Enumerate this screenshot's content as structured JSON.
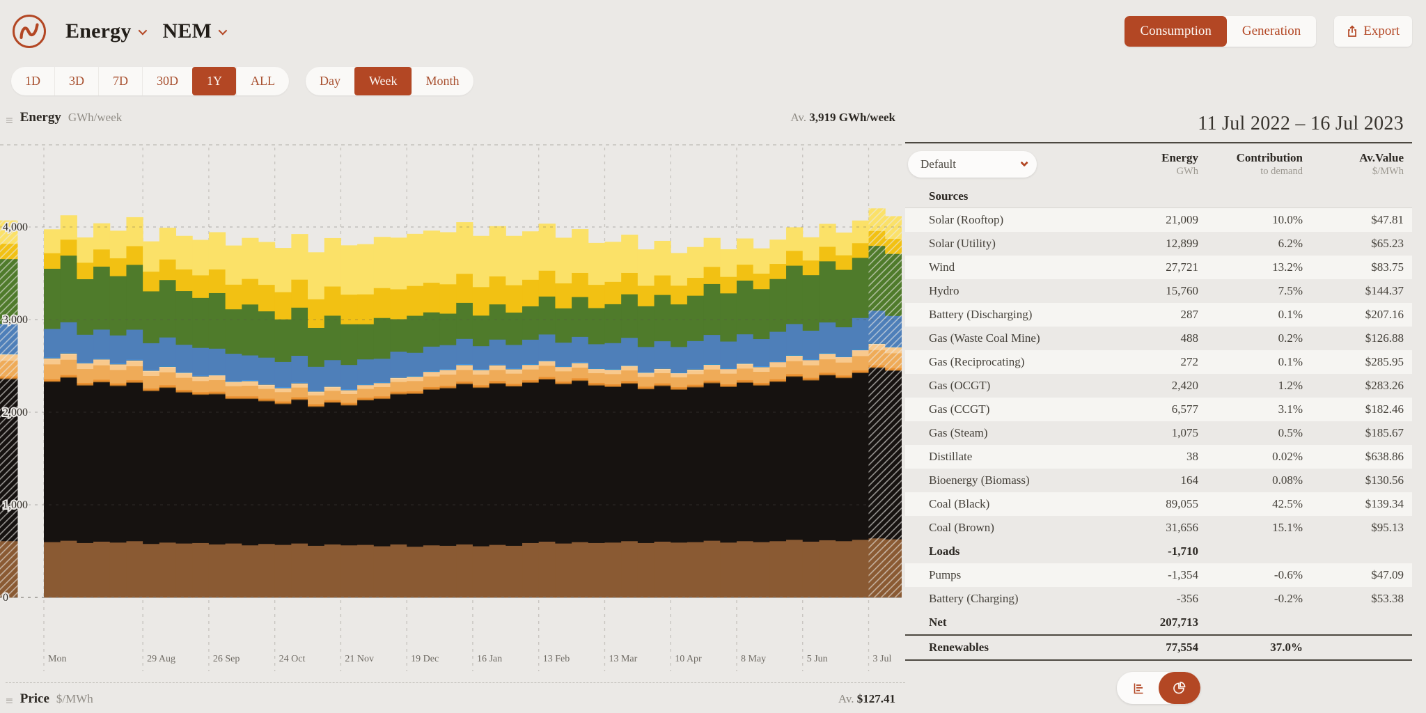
{
  "brand": {
    "accent": "#b34724",
    "logo_name": "opennem-logo"
  },
  "header": {
    "title": "Energy",
    "region": "NEM",
    "views": [
      {
        "label": "Consumption",
        "selected": true
      },
      {
        "label": "Generation",
        "selected": false
      }
    ],
    "export_label": "Export"
  },
  "range_bar": {
    "ranges": [
      {
        "label": "1D",
        "selected": false
      },
      {
        "label": "3D",
        "selected": false
      },
      {
        "label": "7D",
        "selected": false
      },
      {
        "label": "30D",
        "selected": false
      },
      {
        "label": "1Y",
        "selected": true
      },
      {
        "label": "ALL",
        "selected": false
      }
    ],
    "intervals": [
      {
        "label": "Day",
        "selected": false
      },
      {
        "label": "Week",
        "selected": true
      },
      {
        "label": "Month",
        "selected": false
      }
    ]
  },
  "chart_header": {
    "title": "Energy",
    "unit": "GWh/week",
    "average_label": "Av.",
    "average_value": "3,919 GWh/week"
  },
  "price_header": {
    "title": "Price",
    "unit": "$/MWh",
    "average_label": "Av.",
    "average_value": "$127.41"
  },
  "panel": {
    "date_range": "11 Jul 2022 – 16 Jul 2023",
    "filter_value": "Default",
    "columns": {
      "c1": {
        "t": "Energy",
        "s": "GWh"
      },
      "c2": {
        "t": "Contribution",
        "s": "to demand"
      },
      "c3": {
        "t": "Av.Value",
        "s": "$/MWh"
      }
    },
    "rows": [
      {
        "type": "section",
        "label": "Sources",
        "energy": ""
      },
      {
        "type": "row",
        "label": "Solar (Rooftop)",
        "color": "#fbe168",
        "energy": "21,009",
        "contribution": "10.0%",
        "value": "$47.81"
      },
      {
        "type": "row",
        "label": "Solar (Utility)",
        "color": "#f2c113",
        "energy": "12,899",
        "contribution": "6.2%",
        "value": "$65.23"
      },
      {
        "type": "row",
        "label": "Wind",
        "color": "#4f7b2b",
        "energy": "27,721",
        "contribution": "13.2%",
        "value": "$83.75"
      },
      {
        "type": "row",
        "label": "Hydro",
        "color": "#4e7fb9",
        "energy": "15,760",
        "contribution": "7.5%",
        "value": "$144.37"
      },
      {
        "type": "row",
        "label": "Battery (Discharging)",
        "color": "#3f9ff5",
        "energy": "287",
        "contribution": "0.1%",
        "value": "$207.16"
      },
      {
        "type": "row",
        "label": "Gas (Waste Coal Mine)",
        "color": "#9a611f",
        "energy": "488",
        "contribution": "0.2%",
        "value": "$126.88"
      },
      {
        "type": "row",
        "label": "Gas (Reciprocating)",
        "color": "#f6e4c8",
        "energy": "272",
        "contribution": "0.1%",
        "value": "$285.95"
      },
      {
        "type": "row",
        "label": "Gas (OCGT)",
        "color": "#f8c98d",
        "energy": "2,420",
        "contribution": "1.2%",
        "value": "$283.26"
      },
      {
        "type": "row",
        "label": "Gas (CCGT)",
        "color": "#efab58",
        "energy": "6,577",
        "contribution": "3.1%",
        "value": "$182.46"
      },
      {
        "type": "row",
        "label": "Gas (Steam)",
        "color": "#ea9030",
        "energy": "1,075",
        "contribution": "0.5%",
        "value": "$185.67"
      },
      {
        "type": "row",
        "label": "Distillate",
        "color": "#e3523c",
        "energy": "38",
        "contribution": "0.02%",
        "value": "$638.86"
      },
      {
        "type": "row",
        "label": "Bioenergy (Biomass)",
        "color": "#34766e",
        "energy": "164",
        "contribution": "0.08%",
        "value": "$130.56"
      },
      {
        "type": "row",
        "label": "Coal (Black)",
        "color": "#161210",
        "energy": "89,055",
        "contribution": "42.5%",
        "value": "$139.34"
      },
      {
        "type": "row",
        "label": "Coal (Brown)",
        "color": "#8a5a33",
        "energy": "31,656",
        "contribution": "15.1%",
        "value": "$95.13"
      },
      {
        "type": "section",
        "label": "Loads",
        "energy": "-1,710"
      },
      {
        "type": "row",
        "label": "Pumps",
        "color": "#7fa0cb",
        "energy": "-1,354",
        "contribution": "-0.6%",
        "value": "$47.09"
      },
      {
        "type": "row",
        "label": "Battery (Charging)",
        "color": "#bcdcf2",
        "energy": "-356",
        "contribution": "-0.2%",
        "value": "$53.38"
      },
      {
        "type": "net",
        "label": "Net",
        "energy": "207,713"
      },
      {
        "type": "renewables",
        "label": "Renewables",
        "swatch": "#c2bfba",
        "energy": "77,554",
        "contribution": "37.0%"
      }
    ]
  },
  "chart_data": {
    "type": "bar",
    "stacked": true,
    "title": "Energy GWh/week",
    "ylabel": "GWh/week",
    "ylim": [
      0,
      4900
    ],
    "average_gwh_week": 3919,
    "weeks": 53,
    "period_start": "11 Jul 2022",
    "period_end": "16 Jul 2023",
    "hatched_weeks": [
      0,
      51,
      52
    ],
    "y_ticks": [
      {
        "value": 0,
        "label": "0"
      },
      {
        "value": 1000,
        "label": "1,000"
      },
      {
        "value": 2000,
        "label": "2,000"
      },
      {
        "value": 3000,
        "label": "3,000"
      },
      {
        "value": 4000,
        "label": "4,000"
      }
    ],
    "x_ticks": [
      {
        "label": "Mon",
        "week": 1
      },
      {
        "label": "29 Aug",
        "week": 7
      },
      {
        "label": "26 Sep",
        "week": 11
      },
      {
        "label": "24 Oct",
        "week": 15
      },
      {
        "label": "21 Nov",
        "week": 19
      },
      {
        "label": "19 Dec",
        "week": 23
      },
      {
        "label": "16 Jan",
        "week": 27
      },
      {
        "label": "13 Feb",
        "week": 31
      },
      {
        "label": "13 Mar",
        "week": 35
      },
      {
        "label": "10 Apr",
        "week": 39
      },
      {
        "label": "8 May",
        "week": 43
      },
      {
        "label": "5 Jun",
        "week": 47
      },
      {
        "label": "3 Jul",
        "week": 51
      }
    ],
    "series": [
      {
        "name": "Coal (Brown)",
        "color": "#8a5a33",
        "values": [
          610,
          600,
          615,
          590,
          605,
          595,
          610,
          580,
          595,
          585,
          590,
          575,
          585,
          565,
          580,
          570,
          585,
          560,
          575,
          565,
          570,
          555,
          575,
          550,
          565,
          560,
          575,
          555,
          570,
          560,
          590,
          605,
          585,
          600,
          590,
          595,
          610,
          590,
          605,
          595,
          600,
          615,
          595,
          610,
          600,
          610,
          625,
          605,
          620,
          610,
          625,
          640,
          630
        ]
      },
      {
        "name": "Coal (Black)",
        "color": "#161210",
        "values": [
          1750,
          1730,
          1760,
          1700,
          1720,
          1690,
          1710,
          1650,
          1670,
          1630,
          1600,
          1620,
          1560,
          1580,
          1540,
          1520,
          1550,
          1500,
          1530,
          1510,
          1560,
          1590,
          1620,
          1650,
          1680,
          1700,
          1730,
          1710,
          1740,
          1720,
          1730,
          1750,
          1720,
          1740,
          1700,
          1680,
          1700,
          1660,
          1680,
          1650,
          1670,
          1700,
          1680,
          1710,
          1690,
          1720,
          1760,
          1740,
          1780,
          1760,
          1800,
          1840,
          1820
        ]
      },
      {
        "name": "Gas (Waste Coal Mine)",
        "color": "#9a611f",
        "constant": 9
      },
      {
        "name": "Gas (Steam)",
        "color": "#ea9030",
        "constant": 20
      },
      {
        "name": "Gas (CCGT)",
        "color": "#efab58",
        "values": [
          170,
          160,
          165,
          150,
          155,
          145,
          150,
          135,
          140,
          130,
          120,
          125,
          110,
          115,
          105,
          100,
          105,
          95,
          100,
          95,
          95,
          100,
          105,
          110,
          115,
          120,
          125,
          115,
          120,
          110,
          115,
          120,
          110,
          115,
          105,
          110,
          115,
          105,
          110,
          105,
          115,
          120,
          115,
          125,
          120,
          130,
          140,
          135,
          145,
          140,
          155,
          165,
          160
        ]
      },
      {
        "name": "Gas (OCGT)",
        "color": "#f8c98d",
        "values": [
          63,
          59,
          61,
          56,
          57,
          54,
          56,
          50,
          52,
          48,
          44,
          46,
          41,
          43,
          39,
          37,
          39,
          35,
          37,
          35,
          35,
          37,
          39,
          41,
          43,
          44,
          46,
          43,
          44,
          41,
          43,
          44,
          41,
          43,
          39,
          41,
          43,
          39,
          41,
          39,
          43,
          44,
          43,
          46,
          44,
          48,
          52,
          50,
          54,
          52,
          57,
          61,
          59
        ]
      },
      {
        "name": "Gas (Reciprocating)",
        "color": "#f6e4c8",
        "constant": 5
      },
      {
        "name": "Distillate",
        "color": "#e3523c",
        "constant": 1
      },
      {
        "name": "Bioenergy (Biomass)",
        "color": "#34766e",
        "constant": 3
      },
      {
        "name": "Battery (Discharging)",
        "color": "#3f9ff5",
        "constant": 5
      },
      {
        "name": "Hydro",
        "color": "#4e7fb9",
        "values": [
          320,
          310,
          330,
          300,
          315,
          305,
          325,
          290,
          310,
          295,
          300,
          280,
          295,
          270,
          285,
          275,
          290,
          260,
          280,
          265,
          270,
          255,
          275,
          250,
          265,
          260,
          275,
          250,
          270,
          255,
          265,
          280,
          255,
          275,
          260,
          280,
          295,
          270,
          290,
          275,
          300,
          315,
          290,
          310,
          295,
          320,
          335,
          310,
          330,
          315,
          340,
          350,
          330
        ]
      },
      {
        "name": "Wind",
        "color": "#4f7b2b",
        "values": [
          700,
          650,
          720,
          600,
          680,
          640,
          700,
          560,
          620,
          580,
          540,
          600,
          480,
          550,
          500,
          460,
          520,
          420,
          480,
          440,
          380,
          440,
          350,
          400,
          370,
          340,
          390,
          330,
          380,
          350,
          360,
          410,
          370,
          430,
          390,
          420,
          470,
          440,
          500,
          460,
          490,
          550,
          520,
          580,
          540,
          570,
          630,
          600,
          660,
          620,
          650,
          700,
          670
        ]
      },
      {
        "name": "Solar (Utility)",
        "color": "#f2c113",
        "values": [
          165,
          168,
          172,
          178,
          185,
          193,
          202,
          212,
          222,
          233,
          244,
          255,
          266,
          276,
          286,
          294,
          302,
          309,
          315,
          319,
          322,
          323,
          323,
          322,
          320,
          317,
          313,
          308,
          302,
          295,
          287,
          279,
          270,
          261,
          251,
          241,
          231,
          221,
          211,
          202,
          193,
          185,
          178,
          172,
          167,
          163,
          160,
          158,
          157,
          157,
          158,
          160,
          162
        ]
      },
      {
        "name": "Solar (Rooftop)",
        "color": "#fbe168",
        "values": [
          250,
          255,
          260,
          270,
          280,
          295,
          310,
          325,
          340,
          360,
          380,
          400,
          420,
          440,
          460,
          475,
          490,
          505,
          520,
          530,
          540,
          550,
          555,
          560,
          560,
          560,
          555,
          550,
          540,
          530,
          520,
          505,
          490,
          470,
          450,
          430,
          410,
          390,
          370,
          350,
          330,
          310,
          295,
          280,
          270,
          260,
          252,
          248,
          245,
          243,
          242,
          242,
          243
        ]
      }
    ]
  }
}
